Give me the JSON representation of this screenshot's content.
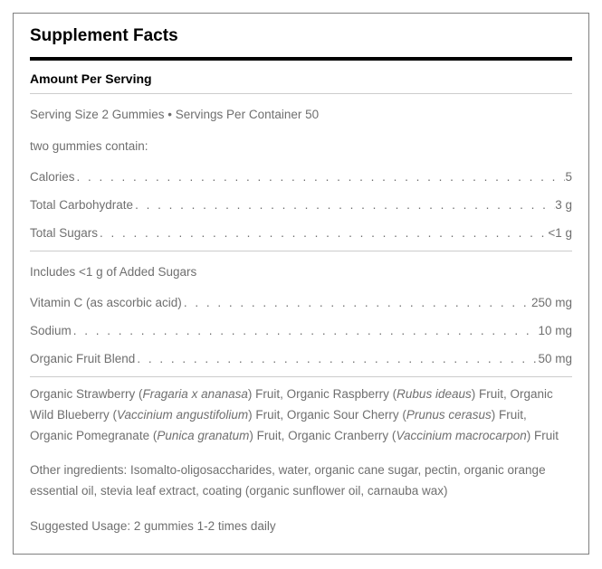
{
  "title": "Supplement Facts",
  "subhead": "Amount Per Serving",
  "serving_line": "Serving Size 2 Gummies • Servings Per Container 50",
  "contain_line": "two gummies contain:",
  "nutrients_top": [
    {
      "label": "Calories",
      "value": "5"
    },
    {
      "label": "Total Carbohydrate",
      "value": "3 g"
    },
    {
      "label": "Total Sugars",
      "value": "<1 g"
    }
  ],
  "added_sugars_line": "Includes <1 g of Added Sugars",
  "nutrients_mid": [
    {
      "label": "Vitamin C (as ascorbic acid)",
      "value": "250 mg"
    },
    {
      "label": "Sodium",
      "value": "10 mg"
    },
    {
      "label": "Organic Fruit Blend",
      "value": "50 mg"
    }
  ],
  "blend_parts": [
    {
      "pre": "Organic Strawberry (",
      "it": "Fragaria x ananasa",
      "post": ") Fruit, "
    },
    {
      "pre": "Organic Raspberry (",
      "it": "Rubus ideaus",
      "post": ") Fruit, "
    },
    {
      "pre": "Organic Wild Blueberry (",
      "it": "Vaccinium angustifolium",
      "post": ") Fruit, "
    },
    {
      "pre": "Organic Sour Cherry (",
      "it": "Prunus cerasus",
      "post": ") Fruit, "
    },
    {
      "pre": "Organic Pomegranate (",
      "it": "Punica granatum",
      "post": ") Fruit, "
    },
    {
      "pre": "Organic Cranberry (",
      "it": "Vaccinium macrocarpon",
      "post": ") Fruit"
    }
  ],
  "other_ingredients": "Other ingredients: Isomalto-oligosaccharides, water, organic cane sugar, pectin, organic orange essential oil, stevia leaf extract, coating (organic sunflower oil, carnauba wax)",
  "suggested_usage": "Suggested Usage: 2 gummies 1-2 times daily"
}
